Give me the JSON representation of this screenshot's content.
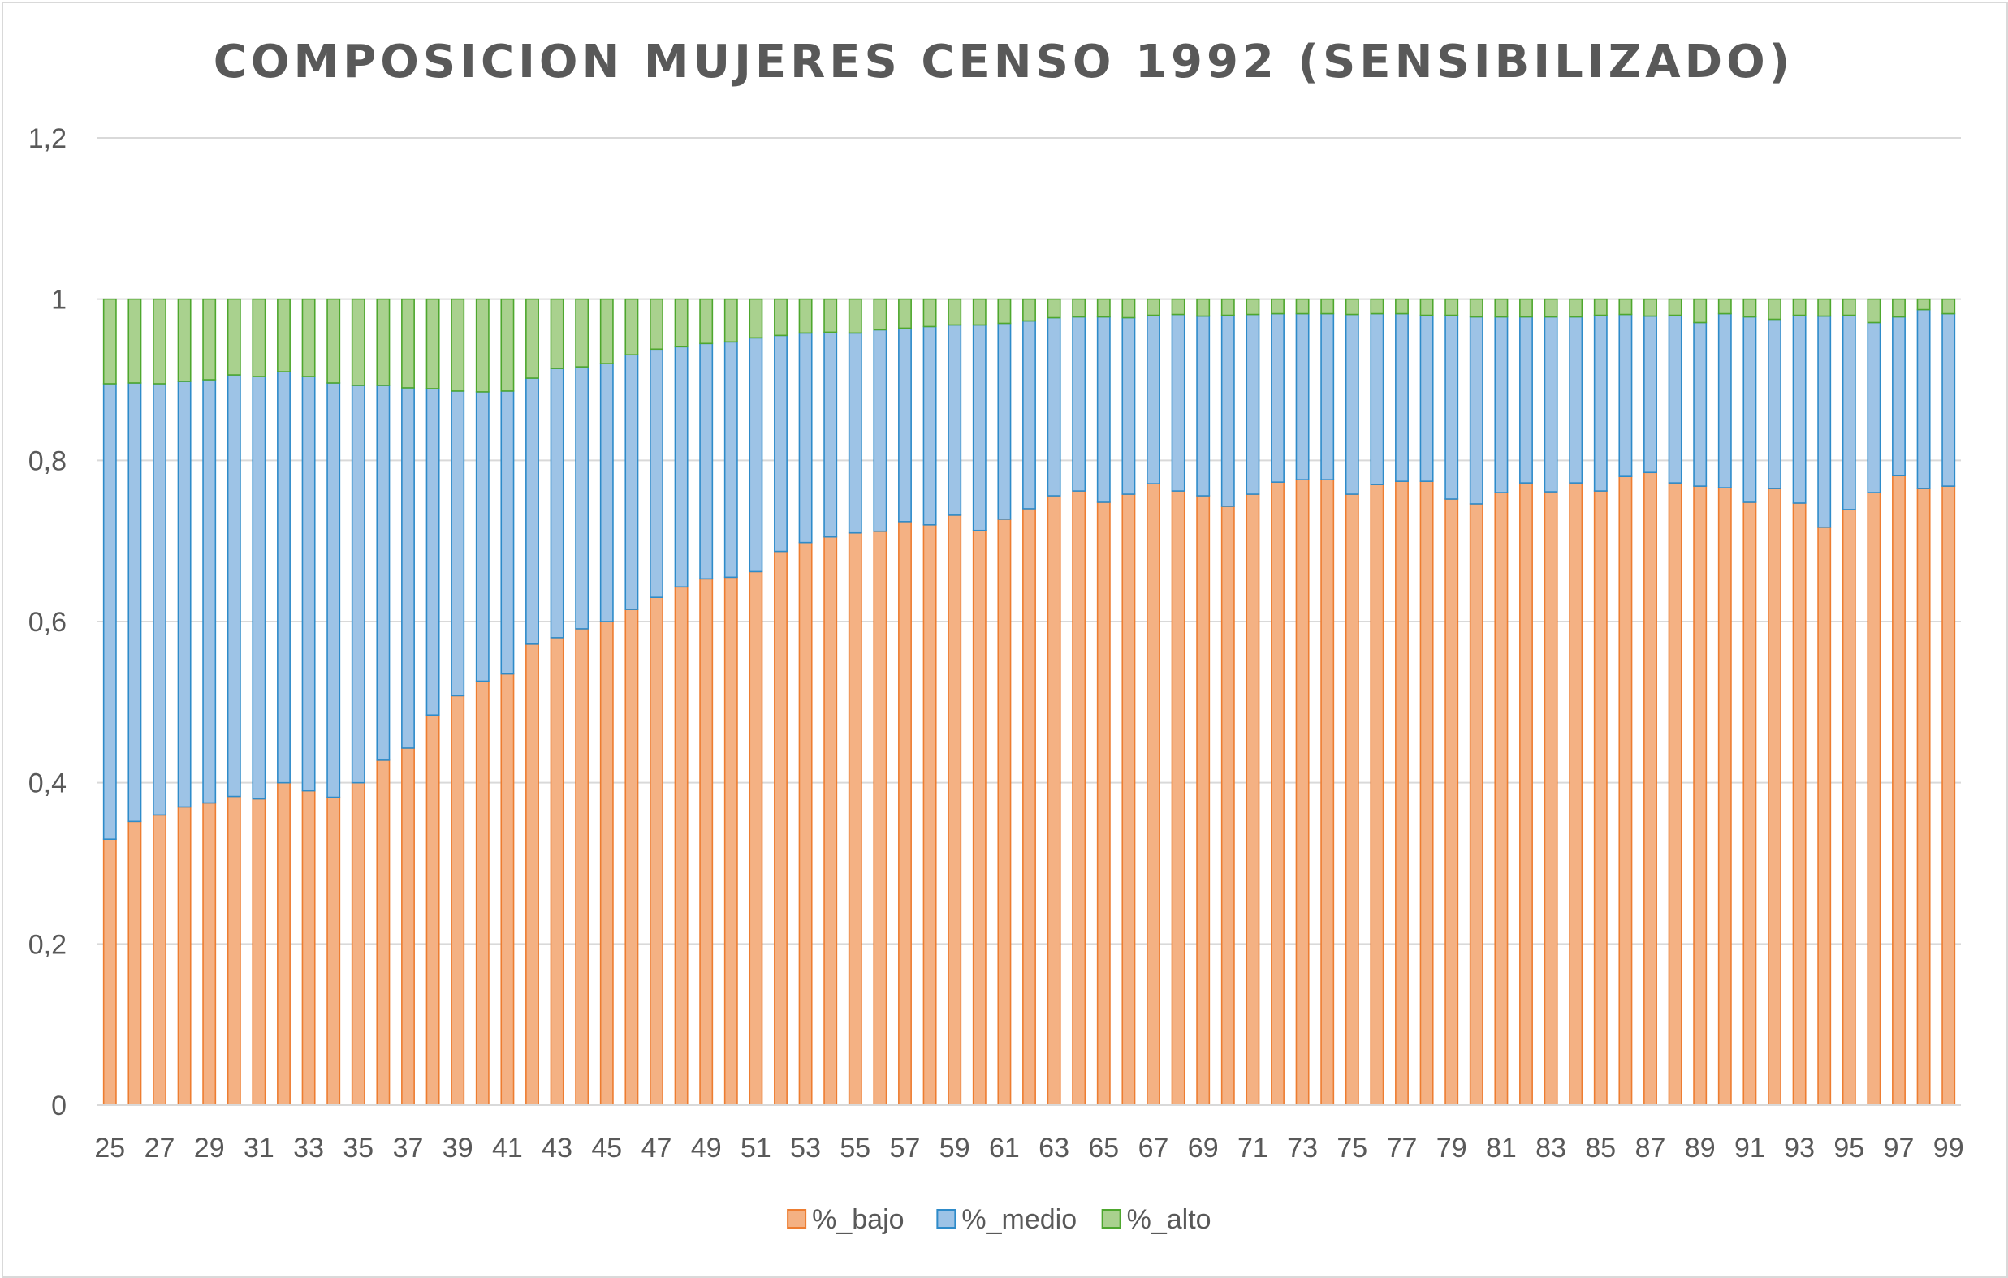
{
  "chart_data": {
    "type": "bar",
    "stacked": true,
    "title": "COMPOSICION MUJERES CENSO 1992 (SENSIBILIZADO)",
    "xlabel": "",
    "ylabel": "",
    "ylim": [
      0,
      1.2
    ],
    "yticks": [
      "0",
      "0,2",
      "0,4",
      "0,6",
      "0,8",
      "1",
      "1,2"
    ],
    "grid": true,
    "legend_position": "bottom",
    "categories": [
      25,
      26,
      27,
      28,
      29,
      30,
      31,
      32,
      33,
      34,
      35,
      36,
      37,
      38,
      39,
      40,
      41,
      42,
      43,
      44,
      45,
      46,
      47,
      48,
      49,
      50,
      51,
      52,
      53,
      54,
      55,
      56,
      57,
      58,
      59,
      60,
      61,
      62,
      63,
      64,
      65,
      66,
      67,
      68,
      69,
      70,
      71,
      72,
      73,
      74,
      75,
      76,
      77,
      78,
      79,
      80,
      81,
      82,
      83,
      84,
      85,
      86,
      87,
      88,
      89,
      90,
      91,
      92,
      93,
      94,
      95,
      96,
      97,
      98,
      99
    ],
    "x_tick_labels": [
      "25",
      "27",
      "29",
      "31",
      "33",
      "35",
      "37",
      "39",
      "41",
      "43",
      "45",
      "47",
      "49",
      "51",
      "53",
      "55",
      "57",
      "59",
      "61",
      "63",
      "65",
      "67",
      "69",
      "71",
      "73",
      "75",
      "77",
      "79",
      "81",
      "83",
      "85",
      "87",
      "89",
      "91",
      "93",
      "95",
      "97",
      "99"
    ],
    "series": [
      {
        "name": "%_bajo",
        "color": "#f4b183",
        "edge": "#ed7d31",
        "values": [
          0.33,
          0.352,
          0.36,
          0.37,
          0.375,
          0.383,
          0.38,
          0.4,
          0.39,
          0.382,
          0.4,
          0.428,
          0.443,
          0.484,
          0.508,
          0.526,
          0.535,
          0.572,
          0.58,
          0.591,
          0.6,
          0.615,
          0.63,
          0.643,
          0.653,
          0.655,
          0.662,
          0.687,
          0.698,
          0.705,
          0.71,
          0.712,
          0.724,
          0.72,
          0.732,
          0.713,
          0.727,
          0.74,
          0.756,
          0.762,
          0.748,
          0.758,
          0.771,
          0.762,
          0.756,
          0.743,
          0.758,
          0.773,
          0.776,
          0.776,
          0.758,
          0.77,
          0.774,
          0.774,
          0.752,
          0.746,
          0.76,
          0.772,
          0.761,
          0.772,
          0.762,
          0.78,
          0.785,
          0.772,
          0.768,
          0.766,
          0.748,
          0.765,
          0.747,
          0.717,
          0.739,
          0.76,
          0.781,
          0.765,
          0.768
        ]
      },
      {
        "name": "%_medio",
        "color": "#9dc3e6",
        "edge": "#2e8bc9",
        "values": [
          0.565,
          0.544,
          0.535,
          0.528,
          0.525,
          0.523,
          0.524,
          0.51,
          0.514,
          0.514,
          0.493,
          0.465,
          0.447,
          0.405,
          0.378,
          0.359,
          0.351,
          0.33,
          0.334,
          0.325,
          0.32,
          0.316,
          0.308,
          0.298,
          0.292,
          0.292,
          0.29,
          0.268,
          0.26,
          0.254,
          0.248,
          0.25,
          0.24,
          0.246,
          0.236,
          0.255,
          0.243,
          0.233,
          0.221,
          0.216,
          0.23,
          0.219,
          0.209,
          0.219,
          0.223,
          0.237,
          0.223,
          0.209,
          0.206,
          0.206,
          0.223,
          0.212,
          0.208,
          0.206,
          0.228,
          0.232,
          0.218,
          0.206,
          0.217,
          0.206,
          0.218,
          0.201,
          0.194,
          0.208,
          0.203,
          0.216,
          0.23,
          0.21,
          0.233,
          0.262,
          0.241,
          0.211,
          0.197,
          0.222,
          0.214
        ]
      },
      {
        "name": "%_alto",
        "color": "#a9d18e",
        "edge": "#4ea72e",
        "values": [
          0.105,
          0.104,
          0.105,
          0.102,
          0.1,
          0.094,
          0.096,
          0.09,
          0.096,
          0.104,
          0.107,
          0.107,
          0.11,
          0.111,
          0.114,
          0.115,
          0.114,
          0.098,
          0.086,
          0.084,
          0.08,
          0.069,
          0.062,
          0.059,
          0.055,
          0.053,
          0.048,
          0.045,
          0.042,
          0.041,
          0.042,
          0.038,
          0.036,
          0.034,
          0.032,
          0.032,
          0.03,
          0.027,
          0.023,
          0.022,
          0.022,
          0.023,
          0.02,
          0.019,
          0.021,
          0.02,
          0.019,
          0.018,
          0.018,
          0.018,
          0.019,
          0.018,
          0.018,
          0.02,
          0.02,
          0.022,
          0.022,
          0.022,
          0.022,
          0.022,
          0.02,
          0.019,
          0.021,
          0.02,
          0.029,
          0.018,
          0.022,
          0.025,
          0.02,
          0.021,
          0.02,
          0.029,
          0.022,
          0.013,
          0.018
        ]
      }
    ]
  }
}
